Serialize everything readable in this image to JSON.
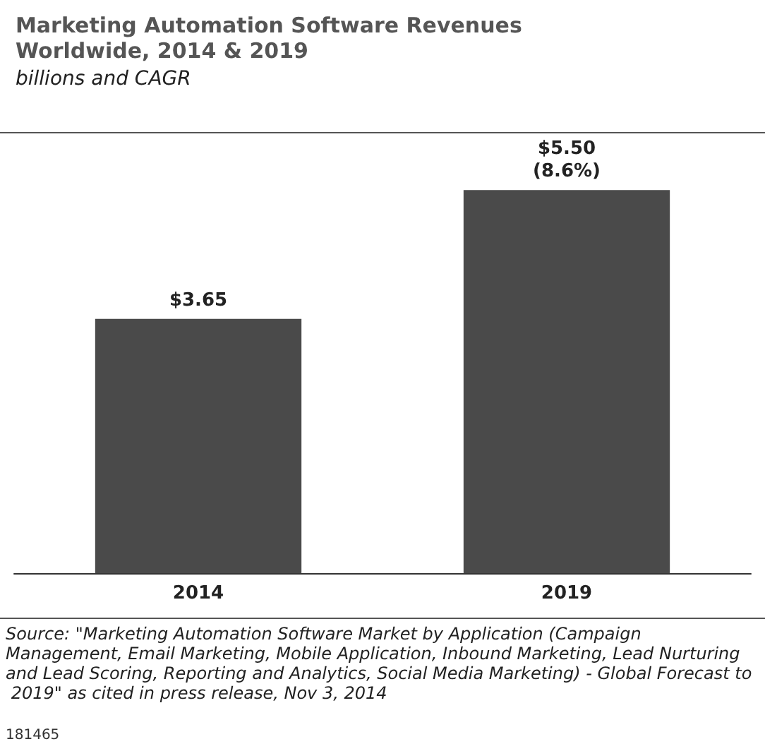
{
  "chart_data": {
    "type": "bar",
    "title": "Marketing Automation Software Revenues\nWorldwide, 2014 & 2019",
    "subtitle": "billions and CAGR",
    "categories": [
      "2014",
      "2019"
    ],
    "values": [
      3.65,
      5.5
    ],
    "value_labels": [
      "$3.65",
      "$5.50\n(8.6%)"
    ],
    "color": "#4a4a4a",
    "annotations": [
      "Source: \"Marketing Automation Software Market by Application (Campaign Management, Email Marketing, Mobile Application, Inbound Marketing, Lead Nurturing and Lead Scoring, Reporting and Analytics, Social Media Marketing) - Global Forecast to 2019\" as cited in press release, Nov 3, 2014",
      "181465"
    ]
  }
}
